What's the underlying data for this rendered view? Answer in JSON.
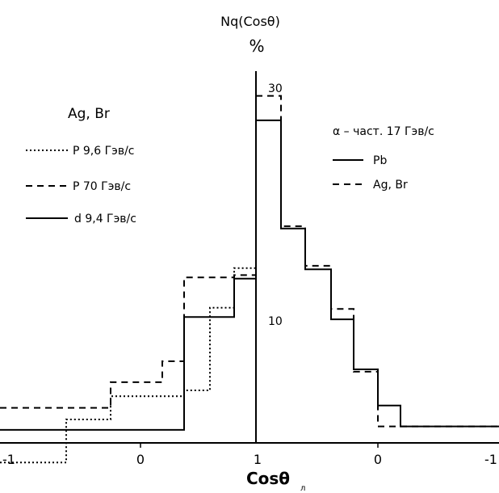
{
  "chart_data": {
    "type": "line",
    "title": "",
    "ylabel_top": "Nq(Cosθ)",
    "ylabel_unit": "%",
    "xlabel": "Cosθ",
    "xlabel_sub": "л",
    "x_ticks": [
      "-1",
      "0",
      "1",
      "0",
      "-1"
    ],
    "y_ticks": [
      {
        "label": "10",
        "value": 10
      },
      {
        "label": "30",
        "value": 30
      }
    ],
    "ylim": [
      -5,
      37
    ],
    "grid": false,
    "left_panel": {
      "edges": [
        0,
        1,
        2,
        3,
        4,
        5,
        6,
        7,
        8
      ],
      "series": [
        {
          "name": "P 9,6 Гэв/с",
          "style": "dotted",
          "values": [
            -2.1,
            1.6,
            3.6,
            3.6,
            4.1,
            11.2,
            14.6,
            14.6,
            23.4
          ]
        },
        {
          "name": "P 70 Гэв/с",
          "style": "dashed",
          "values": [
            2.6,
            2.6,
            4.8,
            6.6,
            13.8,
            13.8,
            14.0,
            16.9,
            19.5
          ]
        },
        {
          "name": "d 9,4 Гэв/с",
          "style": "solid",
          "values": [
            0.7,
            0.7,
            0.7,
            0.7,
            10.4,
            10.4,
            13.7,
            15.6,
            23.5
          ]
        }
      ]
    },
    "right_panel": {
      "edges": [
        0,
        1,
        2,
        3,
        4,
        5,
        6,
        7,
        8,
        9
      ],
      "series": [
        {
          "name": "Pb",
          "style": "solid",
          "values": [
            27.3,
            18.0,
            14.5,
            10.2,
            5.9,
            2.8,
            1.0,
            1.0,
            1.0,
            3.0
          ]
        },
        {
          "name": "Ag, Br",
          "style": "dashed",
          "values": [
            29.4,
            18.2,
            14.8,
            11.1,
            5.7,
            1.0,
            1.0,
            1.0,
            1.0,
            1.2
          ]
        }
      ]
    },
    "legend_left_title": "Ag, Br",
    "legend_right_title": "α – част. 17 Гэв/с"
  }
}
